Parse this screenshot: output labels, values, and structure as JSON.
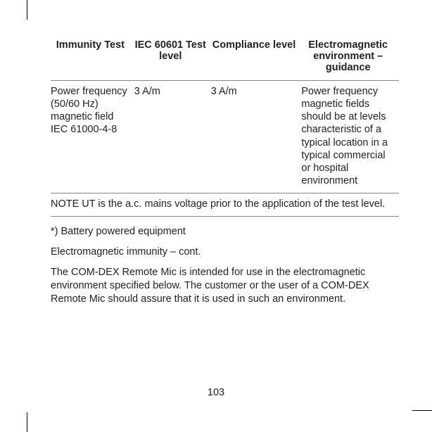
{
  "table": {
    "headers": {
      "c1": "Immunity Test",
      "c2": "IEC 60601 Test level",
      "c3": "Compliance level",
      "c4": "Electromagnetic environment – guidance"
    },
    "row": {
      "c1": "Power frequency (50/60 Hz) magnetic field IEC 61000-4-8",
      "c2": "3 A/m",
      "c3": "3 A/m",
      "c4": "Power frequency magnetic fields should be at levels characteristic of a typical location in a typical commercial or hospital environment"
    },
    "note": "NOTE UT is the a.c. mains voltage prior to the application of the test level."
  },
  "paras": {
    "p1": "*) Battery powered equipment",
    "p2": "Electromagnetic immunity – cont.",
    "p3": "The COM-DEX Remote Mic is intended for use in the electromagnetic environment specified below. The customer or the user of a COM-DEX Remote Mic should assure that it is used in such an environment."
  },
  "pageNumber": "103",
  "style": {
    "text_color": "#231f20",
    "background": "#ffffff",
    "font_size_pt": 11,
    "border_color": "#888888"
  }
}
